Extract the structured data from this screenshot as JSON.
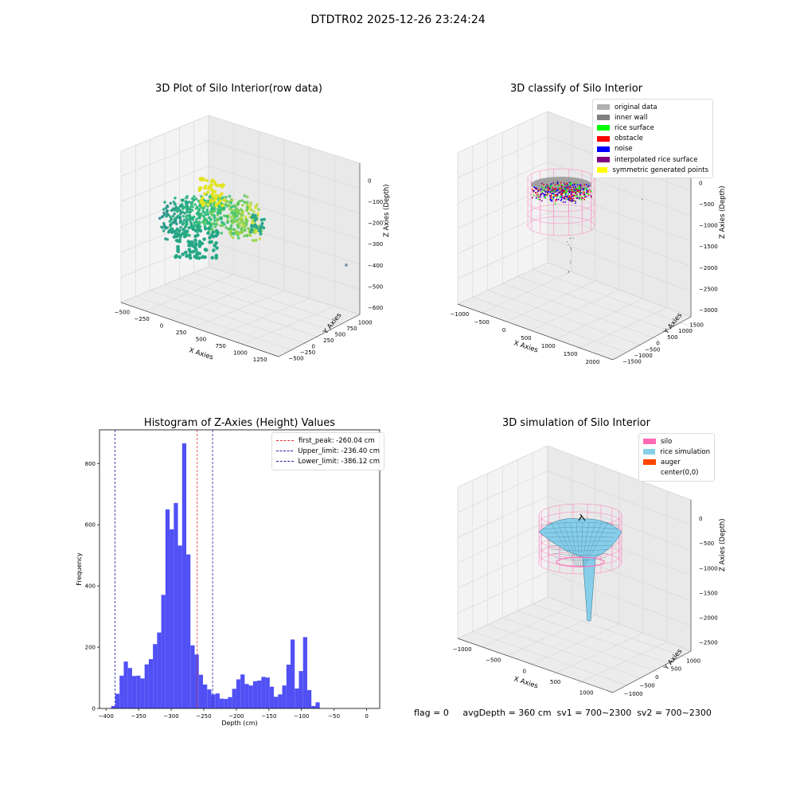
{
  "suptitle": "DTDTR02 2025-12-26 23:24:24",
  "footer": "flag = 0     avgDepth = 360 cm  sv1 = 700~2300  sv2 = 700~2300",
  "colors": {
    "histogram_bar": "#5050f5",
    "first_peak_line": "#e03030",
    "limit_lines": "#2020a0",
    "silo_pink": "#ff69b4",
    "rice_simulation": "#87ceeb",
    "auger": "#ff4500",
    "original_data": "#b0b0b0",
    "inner_wall": "#808080",
    "rice_surface": "#00ff00",
    "obstacle": "#ff0000",
    "noise": "#0000ff",
    "interpolated_rice_surface": "#800080",
    "symmetric_generated_points": "#ffff00"
  },
  "chart_data": [
    {
      "type": "scatter",
      "title": "3D Plot of Silo Interior(row data)",
      "xlabel": "X Axies",
      "ylabel": "Y Axies",
      "zlabel": "Z Axies (Depth)",
      "x_ticks": [
        "−500",
        "−250",
        "0",
        "250",
        "500",
        "750",
        "1000",
        "1250"
      ],
      "y_ticks": [
        "−500",
        "−250",
        "0",
        "250",
        "500",
        "750",
        "1000"
      ],
      "z_ticks": [
        "0",
        "−100",
        "−200",
        "−300",
        "−400",
        "−500",
        "−600"
      ],
      "grid": true
    },
    {
      "type": "scatter",
      "title": "3D classify of Silo Interior",
      "xlabel": "X Axies",
      "ylabel": "Y Axies",
      "zlabel": "Z Axies (Depth)",
      "x_ticks": [
        "−1000",
        "−500",
        "0",
        "500",
        "1000",
        "1500",
        "2000"
      ],
      "y_ticks": [
        "−1500",
        "−1000",
        "−500",
        "0",
        "500",
        "1000",
        "1500"
      ],
      "z_ticks": [
        "0",
        "−500",
        "−1000",
        "−1500",
        "−2000",
        "−2500",
        "−3000"
      ],
      "legend": [
        "original data",
        "inner wall",
        "rice surface",
        "obstacle",
        "noise",
        "interpolated rice surface",
        "symmetric generated points"
      ],
      "legend_placement": "top-right",
      "grid": true
    },
    {
      "type": "bar",
      "title": "Histogram of Z-Axies (Height) Values",
      "xlabel": "Depth (cm)",
      "ylabel": "Frequency",
      "xlim": [
        -410,
        20
      ],
      "ylim": [
        0,
        910
      ],
      "x_ticks": [
        -400,
        -350,
        -300,
        -250,
        -200,
        -150,
        -100,
        -50,
        0
      ],
      "x_tick_labels": [
        "−400",
        "−350",
        "−300",
        "−250",
        "−200",
        "−150",
        "−100",
        "−50",
        "0"
      ],
      "y_ticks": [
        0,
        200,
        400,
        600,
        800
      ],
      "y_tick_labels": [
        "0",
        "200",
        "400",
        "600",
        "800"
      ],
      "bin_start": -392.0,
      "bin_width": 6.4,
      "values": [
        8,
        48,
        107,
        153,
        132,
        106,
        107,
        98,
        144,
        161,
        210,
        248,
        371,
        650,
        585,
        671,
        532,
        866,
        503,
        206,
        176,
        110,
        78,
        62,
        46,
        49,
        32,
        31,
        37,
        64,
        95,
        111,
        80,
        75,
        89,
        91,
        103,
        101,
        71,
        38,
        46,
        75,
        143,
        225,
        65,
        122,
        233,
        60,
        8,
        20
      ],
      "vlines": [
        {
          "x": -260.04,
          "name": "first_peak: -260.04 cm",
          "color": "#e03030"
        },
        {
          "x": -236.4,
          "name": "Upper_limit: -236.40 cm",
          "color": "#2020a0"
        },
        {
          "x": -386.12,
          "name": "Lower_limit: -386.12 cm",
          "color": "#2020a0"
        }
      ],
      "legend_placement": "top-right"
    },
    {
      "type": "area",
      "title": "3D simulation of Silo Interior",
      "xlabel": "X Axies",
      "ylabel": "Y Axies",
      "zlabel": "Z Axies (Depth)",
      "x_ticks": [
        "−1000",
        "−500",
        "0",
        "500",
        "1000"
      ],
      "y_ticks": [
        "−1000",
        "−500",
        "0",
        "500",
        "1000"
      ],
      "z_ticks": [
        "0",
        "−500",
        "−1000",
        "−1500",
        "−2000",
        "−2500"
      ],
      "legend": [
        "silo",
        "rice simulation",
        "auger",
        "center(0,0)"
      ],
      "legend_placement": "top-right",
      "grid": true
    }
  ]
}
